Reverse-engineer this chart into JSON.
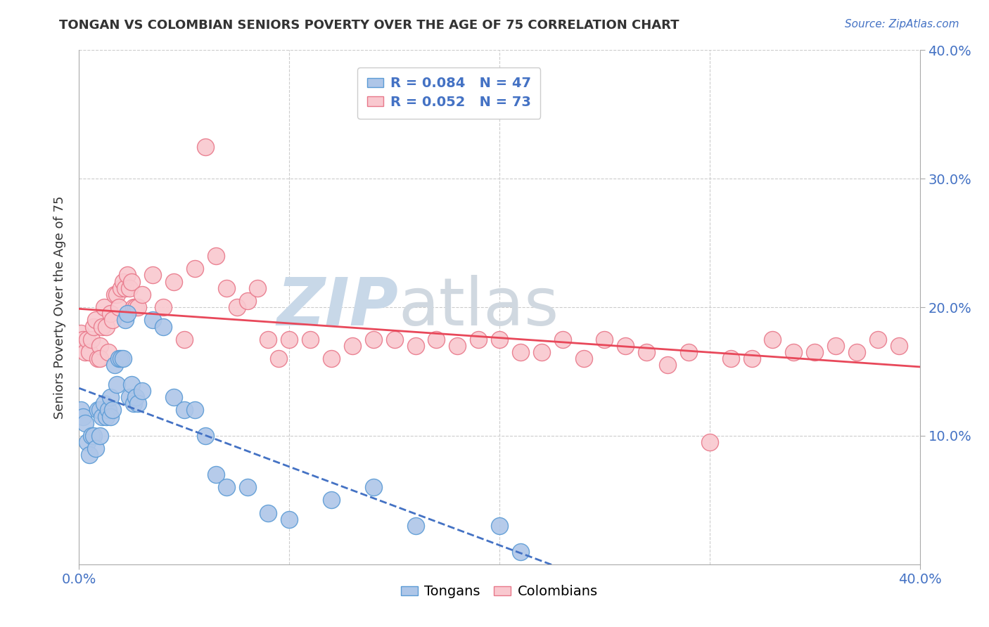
{
  "title": "TONGAN VS COLOMBIAN SENIORS POVERTY OVER THE AGE OF 75 CORRELATION CHART",
  "source": "Source: ZipAtlas.com",
  "ylabel": "Seniors Poverty Over the Age of 75",
  "xmin": 0.0,
  "xmax": 0.4,
  "ymin": 0.0,
  "ymax": 0.4,
  "tongan_color": "#AEC6E8",
  "tongan_edge_color": "#5B9BD5",
  "colombian_color": "#F9C8CF",
  "colombian_edge_color": "#E8788A",
  "tongan_R": 0.084,
  "tongan_N": 47,
  "colombian_R": 0.052,
  "colombian_N": 73,
  "tongan_line_color": "#4472C4",
  "colombian_line_color": "#E8485A",
  "watermark_color": "#C8D8E8",
  "grid_color": "#CCCCCC",
  "background_color": "#FFFFFF",
  "tongan_x": [
    0.001,
    0.002,
    0.003,
    0.004,
    0.005,
    0.006,
    0.007,
    0.008,
    0.009,
    0.01,
    0.01,
    0.011,
    0.012,
    0.013,
    0.014,
    0.015,
    0.015,
    0.016,
    0.017,
    0.018,
    0.019,
    0.02,
    0.021,
    0.022,
    0.023,
    0.024,
    0.025,
    0.026,
    0.027,
    0.028,
    0.03,
    0.035,
    0.04,
    0.045,
    0.05,
    0.055,
    0.06,
    0.065,
    0.07,
    0.08,
    0.09,
    0.1,
    0.12,
    0.14,
    0.16,
    0.2,
    0.21
  ],
  "tongan_y": [
    0.12,
    0.115,
    0.11,
    0.095,
    0.085,
    0.1,
    0.1,
    0.09,
    0.12,
    0.12,
    0.1,
    0.115,
    0.125,
    0.115,
    0.12,
    0.13,
    0.115,
    0.12,
    0.155,
    0.14,
    0.16,
    0.16,
    0.16,
    0.19,
    0.195,
    0.13,
    0.14,
    0.125,
    0.13,
    0.125,
    0.135,
    0.19,
    0.185,
    0.13,
    0.12,
    0.12,
    0.1,
    0.07,
    0.06,
    0.06,
    0.04,
    0.035,
    0.05,
    0.06,
    0.03,
    0.03,
    0.01
  ],
  "colombian_x": [
    0.001,
    0.002,
    0.003,
    0.004,
    0.005,
    0.006,
    0.007,
    0.008,
    0.009,
    0.01,
    0.01,
    0.011,
    0.012,
    0.013,
    0.014,
    0.015,
    0.016,
    0.017,
    0.018,
    0.019,
    0.02,
    0.021,
    0.022,
    0.023,
    0.024,
    0.025,
    0.026,
    0.027,
    0.028,
    0.03,
    0.035,
    0.04,
    0.045,
    0.05,
    0.055,
    0.06,
    0.065,
    0.07,
    0.075,
    0.08,
    0.085,
    0.09,
    0.095,
    0.1,
    0.11,
    0.12,
    0.13,
    0.14,
    0.15,
    0.16,
    0.17,
    0.18,
    0.19,
    0.2,
    0.21,
    0.22,
    0.23,
    0.24,
    0.25,
    0.26,
    0.27,
    0.28,
    0.29,
    0.3,
    0.31,
    0.32,
    0.33,
    0.34,
    0.35,
    0.36,
    0.37,
    0.38,
    0.39
  ],
  "colombian_y": [
    0.18,
    0.175,
    0.165,
    0.175,
    0.165,
    0.175,
    0.185,
    0.19,
    0.16,
    0.17,
    0.16,
    0.185,
    0.2,
    0.185,
    0.165,
    0.195,
    0.19,
    0.21,
    0.21,
    0.2,
    0.215,
    0.22,
    0.215,
    0.225,
    0.215,
    0.22,
    0.2,
    0.2,
    0.2,
    0.21,
    0.225,
    0.2,
    0.22,
    0.175,
    0.23,
    0.325,
    0.24,
    0.215,
    0.2,
    0.205,
    0.215,
    0.175,
    0.16,
    0.175,
    0.175,
    0.16,
    0.17,
    0.175,
    0.175,
    0.17,
    0.175,
    0.17,
    0.175,
    0.175,
    0.165,
    0.165,
    0.175,
    0.16,
    0.175,
    0.17,
    0.165,
    0.155,
    0.165,
    0.095,
    0.16,
    0.16,
    0.175,
    0.165,
    0.165,
    0.17,
    0.165,
    0.175,
    0.17
  ]
}
